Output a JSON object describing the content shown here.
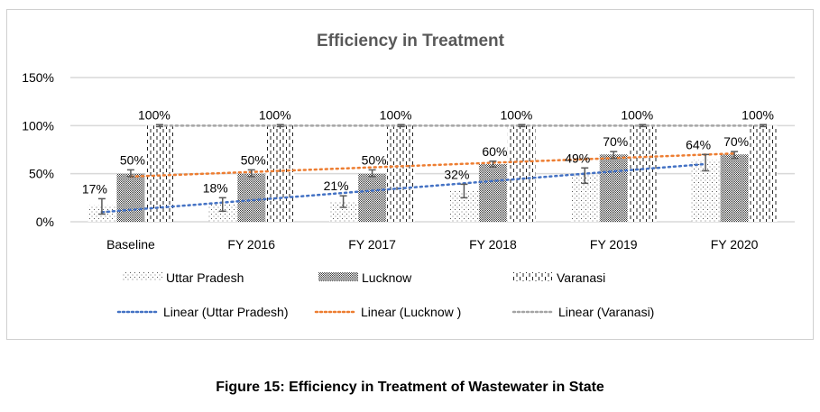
{
  "figure_caption": "Figure 15: Efficiency in Treatment of Wastewater in State",
  "chart_data": {
    "type": "bar",
    "title": "Efficiency in Treatment",
    "xlabel": "",
    "ylabel": "",
    "ylim": [
      0,
      150
    ],
    "yticks": [
      0,
      50,
      100,
      150
    ],
    "ytick_labels": [
      "0%",
      "50%",
      "100%",
      "150%"
    ],
    "grid": true,
    "categories": [
      "Baseline",
      "FY 2016",
      "FY 2017",
      "FY 2018",
      "FY 2019",
      "FY 2020"
    ],
    "series": [
      {
        "name": "Uttar Pradesh",
        "pattern": "sparse-dots",
        "values": [
          17,
          18,
          21,
          32,
          49,
          64
        ],
        "labels": [
          "17%",
          "18%",
          "21%",
          "32%",
          "49%",
          "64%"
        ],
        "error_bars": [
          [
            8,
            24
          ],
          [
            11,
            25
          ],
          [
            15,
            27
          ],
          [
            25,
            39
          ],
          [
            40,
            56
          ],
          [
            53,
            70
          ]
        ]
      },
      {
        "name": "Lucknow",
        "pattern": "dense-dots",
        "values": [
          50,
          50,
          50,
          60,
          70,
          70
        ],
        "labels": [
          "50%",
          "50%",
          "50%",
          "60%",
          "70%",
          "70%"
        ],
        "error_bars": [
          [
            47,
            54
          ],
          [
            47,
            54
          ],
          [
            47,
            54
          ],
          [
            57,
            63
          ],
          [
            66,
            73
          ],
          [
            66,
            73
          ]
        ]
      },
      {
        "name": "Varanasi",
        "pattern": "dashed-vertical",
        "values": [
          100,
          100,
          100,
          100,
          100,
          100
        ],
        "labels": [
          "100%",
          "100%",
          "100%",
          "100%",
          "100%",
          "100%"
        ],
        "error_bars": [
          [
            99,
            101
          ],
          [
            99,
            101
          ],
          [
            99,
            101
          ],
          [
            99,
            101
          ],
          [
            99,
            101
          ],
          [
            99,
            101
          ]
        ]
      }
    ],
    "trendlines": [
      {
        "name": "Linear (Uttar Pradesh)",
        "color": "#4472C4",
        "start": 10,
        "end": 60
      },
      {
        "name": "Linear (Lucknow )",
        "color": "#ED7D31",
        "start": 47,
        "end": 71
      },
      {
        "name": "Linear (Varanasi)",
        "color": "#A5A5A5",
        "start": 100,
        "end": 100
      }
    ],
    "legend": {
      "position": "bottom",
      "entries": [
        "Uttar Pradesh",
        "Lucknow",
        "Varanasi",
        "Linear (Uttar Pradesh)",
        "Linear (Lucknow )",
        "Linear (Varanasi)"
      ]
    }
  }
}
